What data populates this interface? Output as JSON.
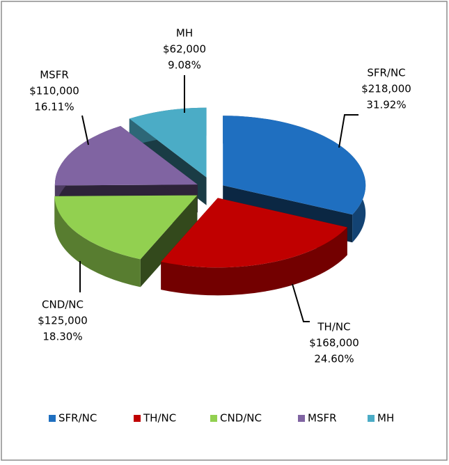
{
  "chart_data": {
    "type": "pie3d",
    "categories": [
      "SFR/NC",
      "TH/NC",
      "CND/NC",
      "MSFR",
      "MH"
    ],
    "values": [
      218000,
      168000,
      125000,
      110000,
      62000
    ],
    "value_labels": [
      "$218,000",
      "$168,000",
      "$125,000",
      "$110,000",
      "$62,000"
    ],
    "percentages": [
      31.92,
      24.6,
      18.3,
      16.11,
      9.08
    ],
    "percentage_labels": [
      "31.92%",
      "24.60%",
      "18.30%",
      "16.11%",
      "9.08%"
    ],
    "colors": [
      "#1f6fc0",
      "#c00000",
      "#92d050",
      "#8064a2",
      "#4bacc6"
    ],
    "legend": "bottom"
  }
}
